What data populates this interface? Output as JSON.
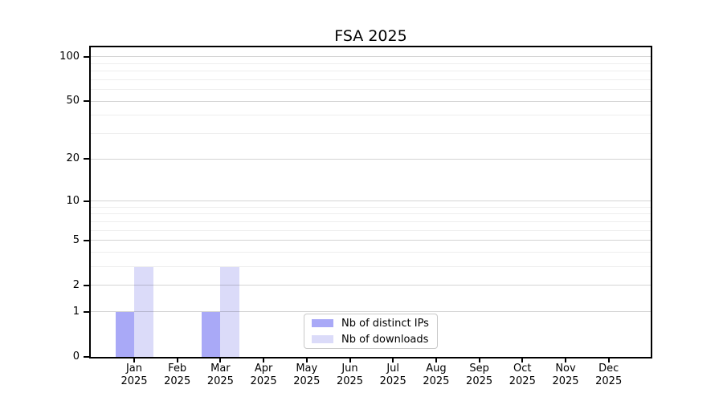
{
  "chart_data": {
    "type": "bar",
    "title": "FSA 2025",
    "x_tick_labels": [
      [
        "Jan",
        "2025"
      ],
      [
        "Feb",
        "2025"
      ],
      [
        "Mar",
        "2025"
      ],
      [
        "Apr",
        "2025"
      ],
      [
        "May",
        "2025"
      ],
      [
        "Jun",
        "2025"
      ],
      [
        "Jul",
        "2025"
      ],
      [
        "Aug",
        "2025"
      ],
      [
        "Sep",
        "2025"
      ],
      [
        "Oct",
        "2025"
      ],
      [
        "Nov",
        "2025"
      ],
      [
        "Dec",
        "2025"
      ]
    ],
    "series": [
      {
        "name": "Nb of distinct IPs",
        "key": "distinct-ips",
        "color": "#a9a9f7",
        "values": [
          1,
          0,
          1,
          0,
          0,
          0,
          0,
          0,
          0,
          0,
          0,
          0
        ]
      },
      {
        "name": "Nb of downloads",
        "key": "downloads",
        "color": "#dbdbf9",
        "values": [
          3,
          0,
          3,
          0,
          0,
          0,
          0,
          0,
          0,
          0,
          0,
          0
        ]
      }
    ],
    "y_axis": {
      "scale": "log1p",
      "major_ticks": [
        0,
        1,
        2,
        5,
        10,
        20,
        50,
        100
      ],
      "minor_ticks": [
        3,
        4,
        6,
        7,
        8,
        9,
        30,
        40,
        60,
        70,
        80,
        90
      ],
      "ylim": [
        0,
        100
      ]
    },
    "xlabel": "",
    "ylabel": "",
    "grid": true,
    "legend_position": "inside-bottom-center"
  },
  "colors": {
    "spine": "#000000",
    "major_grid": "#d4d4d4",
    "minor_grid": "#ededed",
    "legend_border": "#c9c9c9",
    "background": "#ffffff"
  }
}
